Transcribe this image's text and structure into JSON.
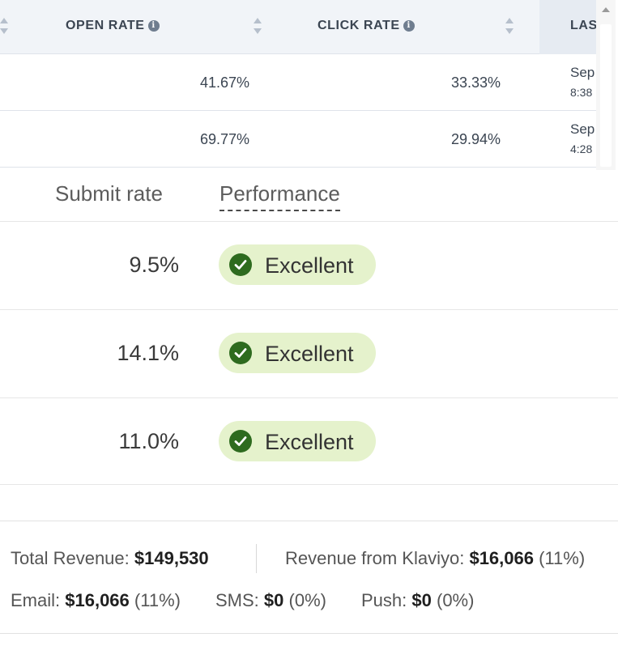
{
  "campaigns_table": {
    "columns": {
      "open_rate": "OPEN RATE",
      "click_rate": "CLICK RATE",
      "last": "LAS"
    },
    "info_glyph": "i",
    "rows": [
      {
        "open_rate": "41.67%",
        "click_rate": "33.33%",
        "date": "Sep",
        "time": "8:38"
      },
      {
        "open_rate": "69.77%",
        "click_rate": "29.94%",
        "date": "Sep",
        "time": "4:28"
      }
    ]
  },
  "performance_table": {
    "headers": {
      "submit_rate": "Submit rate",
      "performance": "Performance"
    },
    "rows": [
      {
        "submit_rate": "9.5%",
        "performance": "Excellent"
      },
      {
        "submit_rate": "14.1%",
        "performance": "Excellent"
      },
      {
        "submit_rate": "11.0%",
        "performance": "Excellent"
      }
    ],
    "badge_color": "#e5f2cc",
    "check_color": "#2e6b1f",
    "badge_icon": "check-circle-icon"
  },
  "revenue_summary": {
    "total_label": "Total Revenue:",
    "total_value": "$149,530",
    "klaviyo_label": "Revenue from Klaviyo:",
    "klaviyo_value": "$16,066",
    "klaviyo_pct": "(11%)",
    "email_label": "Email:",
    "email_value": "$16,066",
    "email_pct": "(11%)",
    "sms_label": "SMS:",
    "sms_value": "$0",
    "sms_pct": "(0%)",
    "push_label": "Push:",
    "push_value": "$0",
    "push_pct": "(0%)"
  }
}
